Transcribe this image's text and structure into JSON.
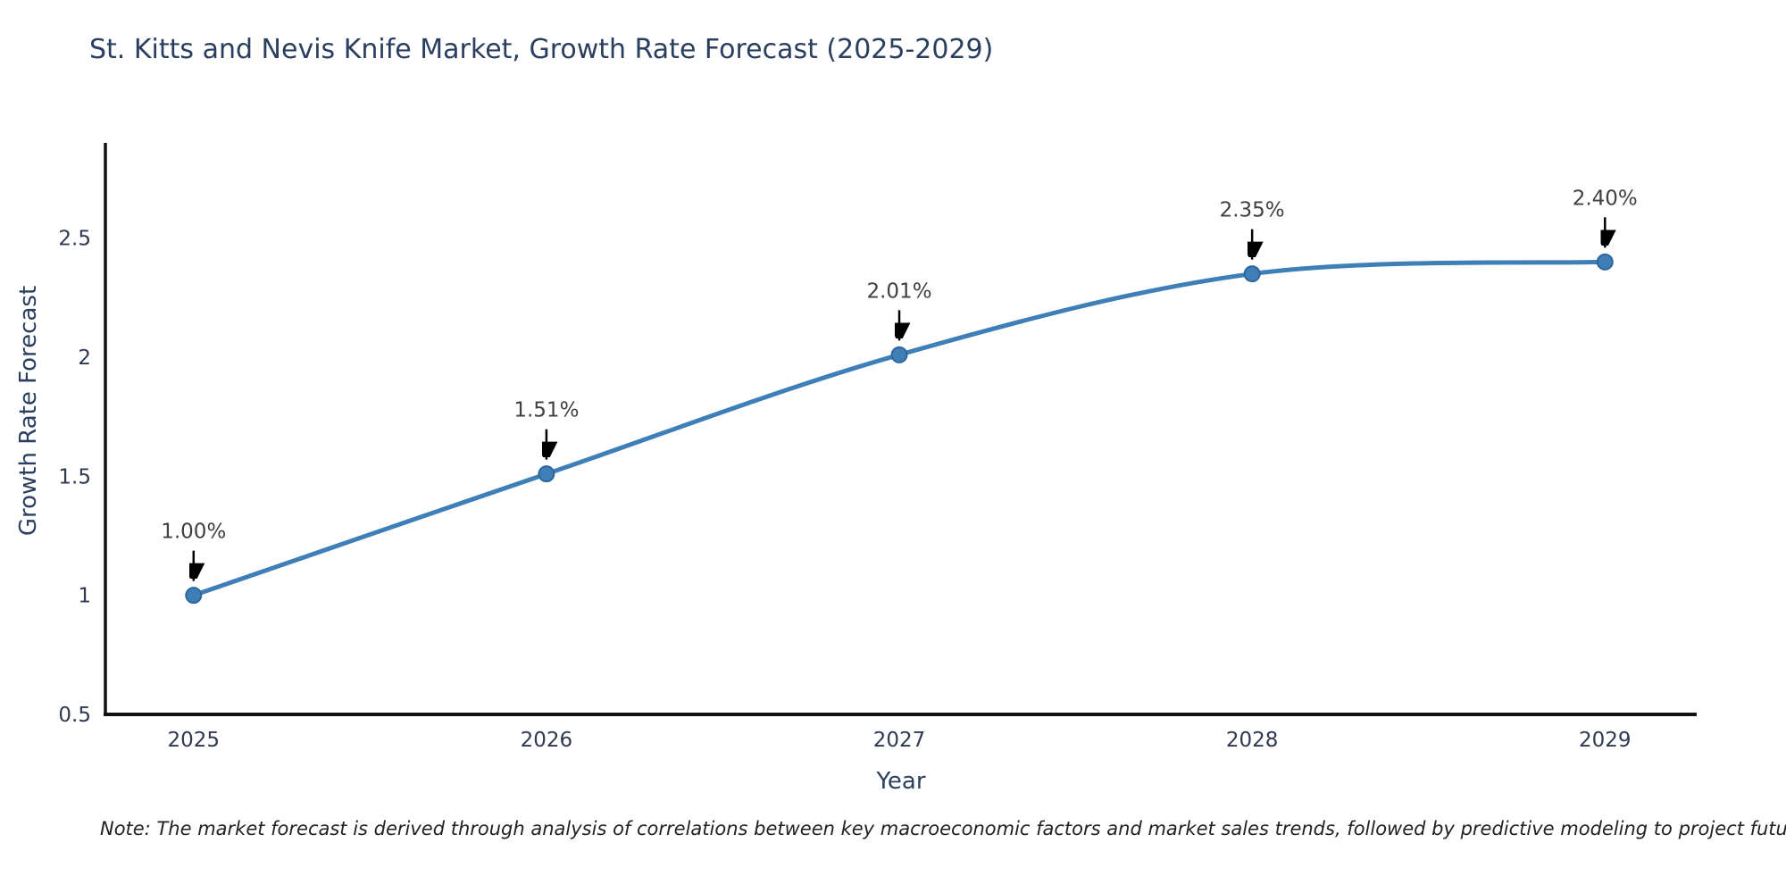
{
  "note": "Note: The market forecast is derived through analysis of correlations between key macroeconomic factors and market sales trends, followed by predictive modeling to project future sales",
  "chart_data": {
    "type": "line",
    "title": "St. Kitts and Nevis Knife Market, Growth Rate Forecast (2025-2029)",
    "xlabel": "Year",
    "ylabel": "Growth Rate Forecast",
    "x": [
      2025,
      2026,
      2027,
      2028,
      2029
    ],
    "series": [
      {
        "name": "Growth Rate Forecast",
        "values": [
          1.0,
          1.51,
          2.01,
          2.35,
          2.4
        ]
      }
    ],
    "point_labels": [
      "1.00%",
      "1.51%",
      "2.01%",
      "2.35%",
      "2.40%"
    ],
    "line_shape": "spline",
    "markers": true,
    "grid": false,
    "legend": "none",
    "xlim": [
      2024.75,
      2029.26
    ],
    "ylim": [
      0.5,
      2.9
    ],
    "xticks": [
      2025,
      2026,
      2027,
      2028,
      2029
    ],
    "xtick_labels": [
      "2025",
      "2026",
      "2027",
      "2028",
      "2029"
    ],
    "yticks": [
      0.5,
      1,
      1.5,
      2,
      2.5
    ],
    "ytick_labels": [
      "0.5",
      "1",
      "1.5",
      "2",
      "2.5"
    ],
    "colors": {
      "line": "#3f7fb8",
      "marker_fill": "#3f7fb8",
      "marker_edge": "#2f6699",
      "axis_line": "#111111",
      "title_text": "#2a3f5f",
      "tick_text": "#2f3a50",
      "annotation_text": "#404040",
      "annotation_arrow": "#000000",
      "background": "#ffffff"
    }
  }
}
